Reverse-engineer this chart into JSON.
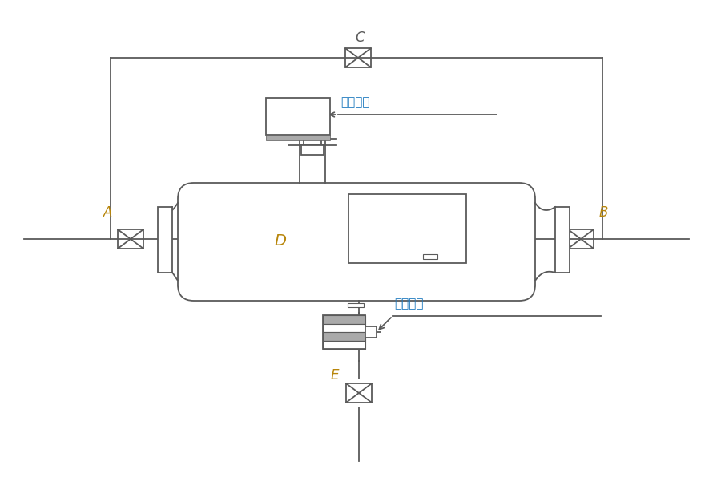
{
  "bg_color": "#ffffff",
  "line_color": "#5a5a5a",
  "label_color_A": "#b8860b",
  "label_color_B": "#b8860b",
  "label_color_C": "#5a5a5a",
  "label_color_D": "#b8860b",
  "label_color_E": "#b8860b",
  "annotation_color": "#1e7abf",
  "elec_ball_valve_label": "电动球阀",
  "motor_label": "电动机构",
  "label_A": "A",
  "label_B": "B",
  "label_C": "C",
  "label_D": "D",
  "label_E": "E"
}
